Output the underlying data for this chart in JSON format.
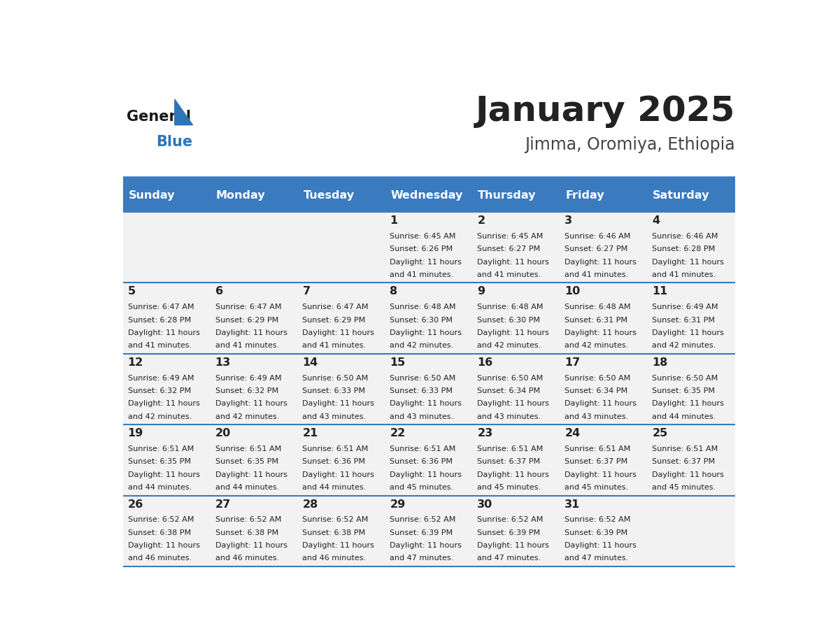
{
  "title": "January 2025",
  "subtitle": "Jimma, Oromiya, Ethiopia",
  "days_of_week": [
    "Sunday",
    "Monday",
    "Tuesday",
    "Wednesday",
    "Thursday",
    "Friday",
    "Saturday"
  ],
  "header_bg": "#3a7bbf",
  "header_text": "#ffffff",
  "cell_bg_light": "#f2f2f2",
  "border_color": "#3a7bbf",
  "title_color": "#222222",
  "subtitle_color": "#444444",
  "text_color": "#222222",
  "calendar_data": [
    [
      null,
      null,
      null,
      {
        "day": 1,
        "sunrise": "6:45 AM",
        "sunset": "6:26 PM",
        "daylight": "11 hours and 41 minutes."
      },
      {
        "day": 2,
        "sunrise": "6:45 AM",
        "sunset": "6:27 PM",
        "daylight": "11 hours and 41 minutes."
      },
      {
        "day": 3,
        "sunrise": "6:46 AM",
        "sunset": "6:27 PM",
        "daylight": "11 hours and 41 minutes."
      },
      {
        "day": 4,
        "sunrise": "6:46 AM",
        "sunset": "6:28 PM",
        "daylight": "11 hours and 41 minutes."
      }
    ],
    [
      {
        "day": 5,
        "sunrise": "6:47 AM",
        "sunset": "6:28 PM",
        "daylight": "11 hours and 41 minutes."
      },
      {
        "day": 6,
        "sunrise": "6:47 AM",
        "sunset": "6:29 PM",
        "daylight": "11 hours and 41 minutes."
      },
      {
        "day": 7,
        "sunrise": "6:47 AM",
        "sunset": "6:29 PM",
        "daylight": "11 hours and 41 minutes."
      },
      {
        "day": 8,
        "sunrise": "6:48 AM",
        "sunset": "6:30 PM",
        "daylight": "11 hours and 42 minutes."
      },
      {
        "day": 9,
        "sunrise": "6:48 AM",
        "sunset": "6:30 PM",
        "daylight": "11 hours and 42 minutes."
      },
      {
        "day": 10,
        "sunrise": "6:48 AM",
        "sunset": "6:31 PM",
        "daylight": "11 hours and 42 minutes."
      },
      {
        "day": 11,
        "sunrise": "6:49 AM",
        "sunset": "6:31 PM",
        "daylight": "11 hours and 42 minutes."
      }
    ],
    [
      {
        "day": 12,
        "sunrise": "6:49 AM",
        "sunset": "6:32 PM",
        "daylight": "11 hours and 42 minutes."
      },
      {
        "day": 13,
        "sunrise": "6:49 AM",
        "sunset": "6:32 PM",
        "daylight": "11 hours and 42 minutes."
      },
      {
        "day": 14,
        "sunrise": "6:50 AM",
        "sunset": "6:33 PM",
        "daylight": "11 hours and 43 minutes."
      },
      {
        "day": 15,
        "sunrise": "6:50 AM",
        "sunset": "6:33 PM",
        "daylight": "11 hours and 43 minutes."
      },
      {
        "day": 16,
        "sunrise": "6:50 AM",
        "sunset": "6:34 PM",
        "daylight": "11 hours and 43 minutes."
      },
      {
        "day": 17,
        "sunrise": "6:50 AM",
        "sunset": "6:34 PM",
        "daylight": "11 hours and 43 minutes."
      },
      {
        "day": 18,
        "sunrise": "6:50 AM",
        "sunset": "6:35 PM",
        "daylight": "11 hours and 44 minutes."
      }
    ],
    [
      {
        "day": 19,
        "sunrise": "6:51 AM",
        "sunset": "6:35 PM",
        "daylight": "11 hours and 44 minutes."
      },
      {
        "day": 20,
        "sunrise": "6:51 AM",
        "sunset": "6:35 PM",
        "daylight": "11 hours and 44 minutes."
      },
      {
        "day": 21,
        "sunrise": "6:51 AM",
        "sunset": "6:36 PM",
        "daylight": "11 hours and 44 minutes."
      },
      {
        "day": 22,
        "sunrise": "6:51 AM",
        "sunset": "6:36 PM",
        "daylight": "11 hours and 45 minutes."
      },
      {
        "day": 23,
        "sunrise": "6:51 AM",
        "sunset": "6:37 PM",
        "daylight": "11 hours and 45 minutes."
      },
      {
        "day": 24,
        "sunrise": "6:51 AM",
        "sunset": "6:37 PM",
        "daylight": "11 hours and 45 minutes."
      },
      {
        "day": 25,
        "sunrise": "6:51 AM",
        "sunset": "6:37 PM",
        "daylight": "11 hours and 45 minutes."
      }
    ],
    [
      {
        "day": 26,
        "sunrise": "6:52 AM",
        "sunset": "6:38 PM",
        "daylight": "11 hours and 46 minutes."
      },
      {
        "day": 27,
        "sunrise": "6:52 AM",
        "sunset": "6:38 PM",
        "daylight": "11 hours and 46 minutes."
      },
      {
        "day": 28,
        "sunrise": "6:52 AM",
        "sunset": "6:38 PM",
        "daylight": "11 hours and 46 minutes."
      },
      {
        "day": 29,
        "sunrise": "6:52 AM",
        "sunset": "6:39 PM",
        "daylight": "11 hours and 47 minutes."
      },
      {
        "day": 30,
        "sunrise": "6:52 AM",
        "sunset": "6:39 PM",
        "daylight": "11 hours and 47 minutes."
      },
      {
        "day": 31,
        "sunrise": "6:52 AM",
        "sunset": "6:39 PM",
        "daylight": "11 hours and 47 minutes."
      },
      null
    ]
  ]
}
